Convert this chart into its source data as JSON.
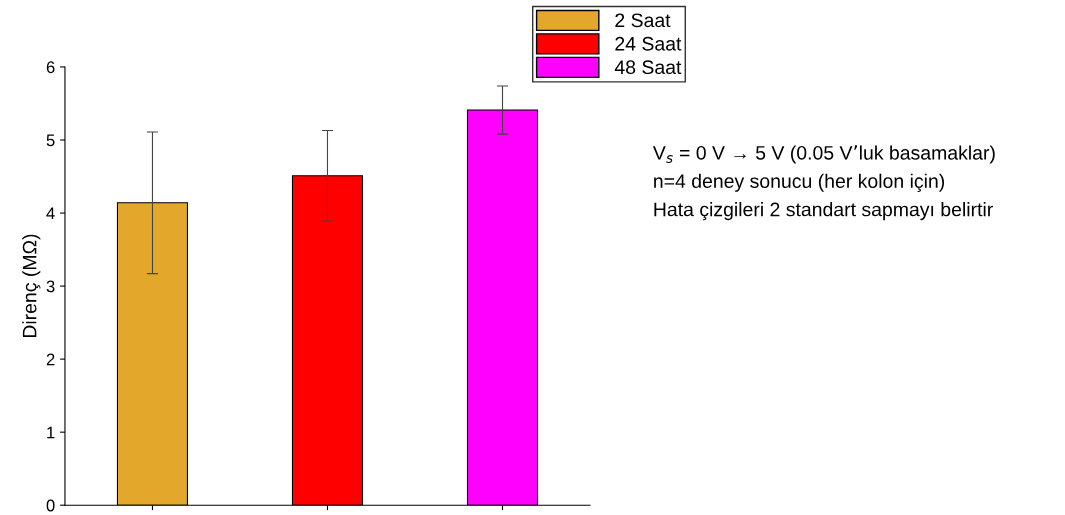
{
  "chart_data": {
    "type": "bar",
    "ylabel": "Direnç (MΩ)",
    "categories": [
      null,
      null,
      null
    ],
    "series": [
      {
        "name": "2 Saat",
        "color": "#e3a82b",
        "values": [
          4.14,
          null,
          null
        ],
        "errors": [
          0.97,
          null,
          null
        ]
      },
      {
        "name": "24 Saat",
        "color": "#ff0000",
        "values": [
          null,
          4.51,
          null
        ],
        "errors": [
          null,
          0.62,
          null
        ]
      },
      {
        "name": "48 Saat",
        "color": "#ff00ff",
        "values": [
          null,
          null,
          5.41
        ],
        "errors": [
          null,
          null,
          0.33
        ]
      }
    ],
    "ylim": [
      0,
      6
    ],
    "yticks": [
      0,
      1,
      2,
      3,
      4,
      5,
      6
    ],
    "grid": false,
    "legend": "top right",
    "tick_labels": "y",
    "annotations": [
      "V$_{s}$ = 0 V → 5 V (0.05 V’luk basamaklar)",
      "n=4 deney sonucu (her kolon için)",
      "Hata çizgileri 2 standart sapmayı belirtir"
    ]
  }
}
